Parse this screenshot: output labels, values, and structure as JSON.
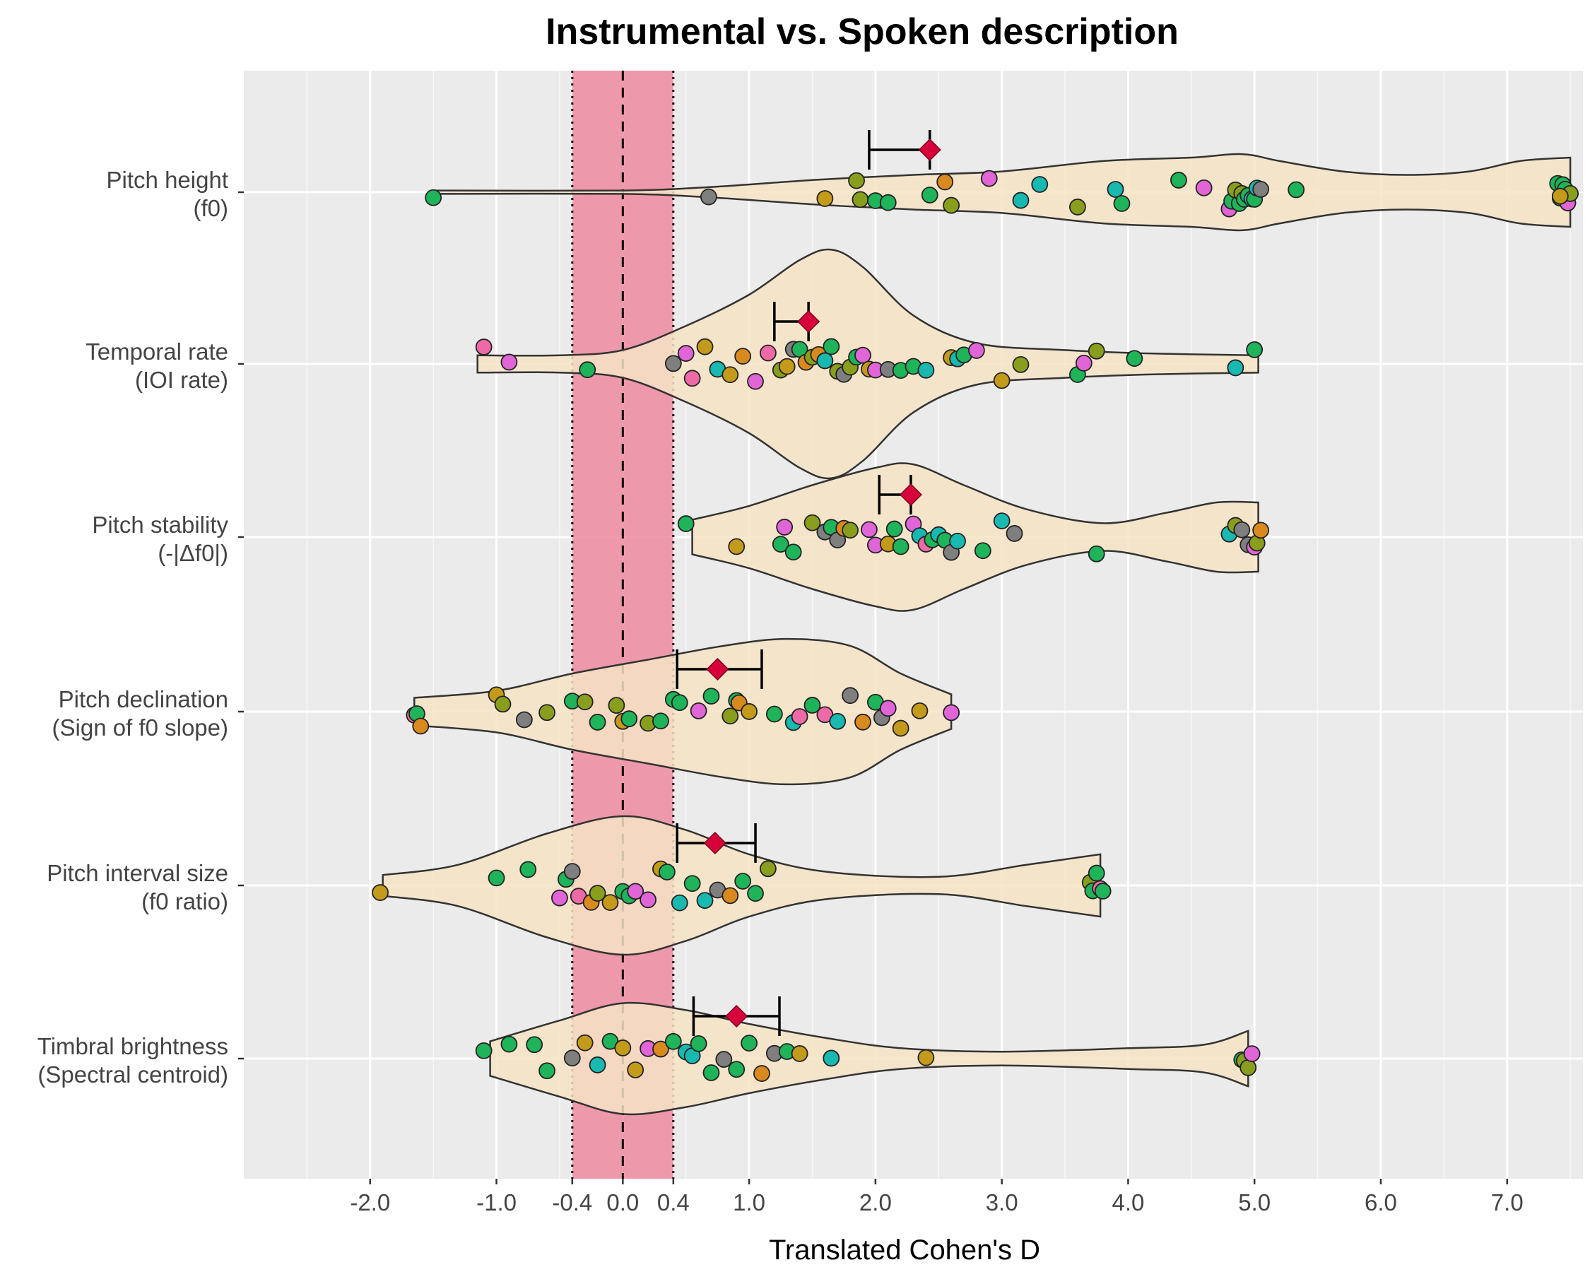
{
  "chart_data": {
    "type": "violin",
    "title": "Instrumental vs. Spoken description",
    "xlabel": "Translated Cohen's D",
    "ylabel": "",
    "xlim": [
      -3.0,
      7.6
    ],
    "x_ticks": [
      -2.0,
      -1.0,
      -0.4,
      0.0,
      0.4,
      1.0,
      2.0,
      3.0,
      4.0,
      5.0,
      6.0,
      7.0
    ],
    "x_tick_labels": [
      "-2.0",
      "-1.0",
      "-0.4",
      "0.0",
      "0.4",
      "1.0",
      "2.0",
      "3.0",
      "4.0",
      "5.0",
      "6.0",
      "7.0"
    ],
    "reference_band": {
      "from": -0.4,
      "to": 0.4,
      "center": 0.0,
      "color": "#ee8aa0"
    },
    "grid": true,
    "colors": {
      "panel": "#ebebeb",
      "violin_fill": "#f6e3c4",
      "estimate": "#d6003a",
      "points": [
        "#1fb35a",
        "#1fb35a",
        "#1fb35a",
        "#1fb35a",
        "#19b8b0",
        "#e065d6",
        "#ee6aa7",
        "#c49a1a",
        "#d98a1f",
        "#8a9e1e",
        "#7f7f7f"
      ]
    },
    "categories": [
      {
        "label": [
          "Pitch height",
          "(f0)"
        ],
        "mean": 2.43,
        "ci": [
          1.95,
          2.43
        ],
        "violin": [
          [
            -1.5,
            0.01
          ],
          [
            0.0,
            0.01
          ],
          [
            0.7,
            0.03
          ],
          [
            1.5,
            0.07
          ],
          [
            2.3,
            0.1
          ],
          [
            3.0,
            0.12
          ],
          [
            3.8,
            0.18
          ],
          [
            4.5,
            0.2
          ],
          [
            4.9,
            0.22
          ],
          [
            5.2,
            0.18
          ],
          [
            5.7,
            0.12
          ],
          [
            6.2,
            0.1
          ],
          [
            6.7,
            0.12
          ],
          [
            7.1,
            0.18
          ],
          [
            7.5,
            0.2
          ]
        ],
        "points": [
          -1.5,
          0.68,
          1.6,
          1.85,
          1.88,
          2.0,
          2.1,
          2.43,
          2.55,
          2.6,
          2.9,
          3.15,
          3.3,
          3.6,
          3.9,
          3.95,
          4.4,
          4.6,
          4.8,
          4.82,
          4.85,
          4.88,
          4.9,
          4.92,
          4.95,
          4.98,
          5.0,
          5.02,
          5.05,
          5.33,
          7.4,
          7.42,
          7.44,
          7.46,
          7.48,
          7.5,
          7.42
        ]
      },
      {
        "label": [
          "Temporal rate",
          "(IOI rate)"
        ],
        "mean": 1.47,
        "ci": [
          1.2,
          1.47
        ],
        "violin": [
          [
            -1.15,
            0.05
          ],
          [
            -0.5,
            0.05
          ],
          [
            0.0,
            0.08
          ],
          [
            0.5,
            0.22
          ],
          [
            1.0,
            0.4
          ],
          [
            1.4,
            0.6
          ],
          [
            1.65,
            0.66
          ],
          [
            1.9,
            0.56
          ],
          [
            2.3,
            0.28
          ],
          [
            2.8,
            0.12
          ],
          [
            3.5,
            0.08
          ],
          [
            4.2,
            0.06
          ],
          [
            5.03,
            0.05
          ]
        ],
        "points": [
          -1.1,
          -0.9,
          -0.28,
          0.4,
          0.5,
          0.55,
          0.65,
          0.75,
          0.85,
          0.95,
          1.05,
          1.15,
          1.25,
          1.3,
          1.35,
          1.4,
          1.45,
          1.5,
          1.55,
          1.6,
          1.65,
          1.7,
          1.75,
          1.8,
          1.85,
          1.9,
          1.95,
          2.0,
          2.1,
          2.2,
          2.3,
          2.4,
          2.6,
          2.65,
          2.7,
          2.8,
          3.0,
          3.15,
          3.6,
          3.65,
          3.75,
          4.05,
          4.85,
          5.0
        ]
      },
      {
        "label": [
          "Pitch stability",
          "(-|Δf0|)"
        ],
        "mean": 2.28,
        "ci": [
          2.03,
          2.28
        ],
        "violin": [
          [
            0.55,
            0.1
          ],
          [
            1.0,
            0.18
          ],
          [
            1.5,
            0.3
          ],
          [
            2.0,
            0.4
          ],
          [
            2.3,
            0.42
          ],
          [
            2.7,
            0.3
          ],
          [
            3.2,
            0.16
          ],
          [
            3.8,
            0.08
          ],
          [
            4.3,
            0.14
          ],
          [
            4.7,
            0.2
          ],
          [
            5.03,
            0.2
          ]
        ],
        "points": [
          0.5,
          0.9,
          1.25,
          1.28,
          1.35,
          1.5,
          1.6,
          1.65,
          1.7,
          1.75,
          1.8,
          1.95,
          2.0,
          2.1,
          2.15,
          2.2,
          2.3,
          2.35,
          2.4,
          2.45,
          2.5,
          2.55,
          2.6,
          2.65,
          2.85,
          3.0,
          3.1,
          3.75,
          4.8,
          4.85,
          4.9,
          4.95,
          5.0,
          5.02,
          5.05
        ]
      },
      {
        "label": [
          "Pitch declination",
          "(Sign of f0 slope)"
        ],
        "mean": 0.75,
        "ci": [
          0.43,
          1.1
        ],
        "violin": [
          [
            -1.65,
            0.08
          ],
          [
            -1.0,
            0.12
          ],
          [
            -0.4,
            0.22
          ],
          [
            0.2,
            0.3
          ],
          [
            0.8,
            0.38
          ],
          [
            1.3,
            0.42
          ],
          [
            1.8,
            0.38
          ],
          [
            2.2,
            0.22
          ],
          [
            2.6,
            0.1
          ]
        ],
        "points": [
          -1.65,
          -1.63,
          -1.6,
          -1.0,
          -0.95,
          -0.78,
          -0.6,
          -0.4,
          -0.3,
          -0.2,
          -0.05,
          0.0,
          0.05,
          0.2,
          0.3,
          0.4,
          0.45,
          0.6,
          0.7,
          0.85,
          0.9,
          0.92,
          1.0,
          1.2,
          1.35,
          1.4,
          1.5,
          1.6,
          1.7,
          1.8,
          1.9,
          2.0,
          2.05,
          2.1,
          2.2,
          2.35,
          2.6
        ]
      },
      {
        "label": [
          "Pitch interval size",
          "(f0 ratio)"
        ],
        "mean": 0.73,
        "ci": [
          0.43,
          1.05
        ],
        "violin": [
          [
            -1.9,
            0.06
          ],
          [
            -1.3,
            0.12
          ],
          [
            -0.6,
            0.3
          ],
          [
            0.0,
            0.4
          ],
          [
            0.5,
            0.32
          ],
          [
            1.0,
            0.18
          ],
          [
            1.6,
            0.08
          ],
          [
            2.5,
            0.05
          ],
          [
            3.2,
            0.12
          ],
          [
            3.78,
            0.18
          ]
        ],
        "points": [
          -1.92,
          -1.0,
          -0.75,
          -0.5,
          -0.45,
          -0.4,
          -0.35,
          -0.25,
          -0.2,
          -0.1,
          0.0,
          0.05,
          0.1,
          0.2,
          0.3,
          0.35,
          0.45,
          0.55,
          0.65,
          0.75,
          0.85,
          0.95,
          1.05,
          1.15,
          3.7,
          3.72,
          3.75,
          3.78,
          3.8
        ]
      },
      {
        "label": [
          "Timbral brightness",
          "(Spectral centroid)"
        ],
        "mean": 0.9,
        "ci": [
          0.56,
          1.24
        ],
        "violin": [
          [
            -1.05,
            0.1
          ],
          [
            -0.5,
            0.22
          ],
          [
            0.0,
            0.32
          ],
          [
            0.5,
            0.28
          ],
          [
            1.0,
            0.2
          ],
          [
            1.6,
            0.12
          ],
          [
            2.2,
            0.06
          ],
          [
            3.0,
            0.04
          ],
          [
            4.0,
            0.06
          ],
          [
            4.6,
            0.08
          ],
          [
            4.95,
            0.16
          ]
        ],
        "points": [
          -1.1,
          -0.9,
          -0.7,
          -0.6,
          -0.4,
          -0.3,
          -0.2,
          -0.1,
          0.0,
          0.1,
          0.2,
          0.3,
          0.4,
          0.5,
          0.55,
          0.6,
          0.7,
          0.8,
          0.9,
          1.0,
          1.1,
          1.2,
          1.3,
          1.4,
          1.65,
          2.4,
          4.9,
          4.92,
          4.95,
          4.98
        ]
      }
    ]
  }
}
